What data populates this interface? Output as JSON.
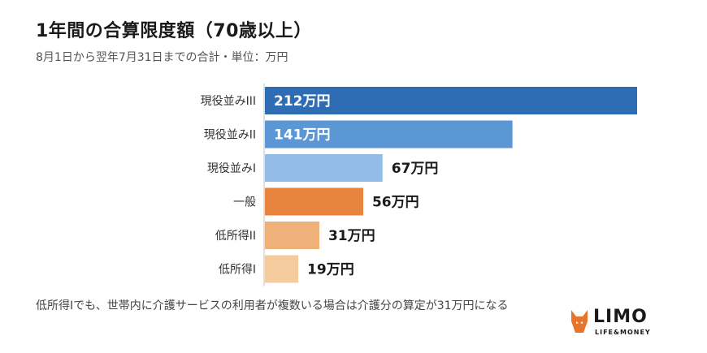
{
  "title": "1年間の合算限度額（70歳以上）",
  "subtitle": "8月1日から翌年7月31日までの合計・単位：万円",
  "note": "低所得Iでも、世帯内に介護サービスの利用者が複数いる場合は介護分の算定が31万円になる",
  "logo": {
    "name": "LIMO",
    "tagline": "LIFE&MONEY",
    "icon": "fox-icon",
    "color": "#e8742a"
  },
  "chart_data": {
    "type": "bar",
    "orientation": "horizontal",
    "categories": [
      "現役並みIII",
      "現役並みII",
      "現役並みI",
      "一般",
      "低所得II",
      "低所得I"
    ],
    "values": [
      212,
      141,
      67,
      56,
      31,
      19
    ],
    "data_labels": [
      "212万円",
      "141万円",
      "67万円",
      "56万円",
      "31万円",
      "19万円"
    ],
    "colors": [
      "#2e6db4",
      "#5b97d5",
      "#93bde8",
      "#e8843e",
      "#f0b07a",
      "#f5cb9e"
    ],
    "label_inside": [
      true,
      true,
      false,
      false,
      false,
      false
    ],
    "grid": false
  }
}
